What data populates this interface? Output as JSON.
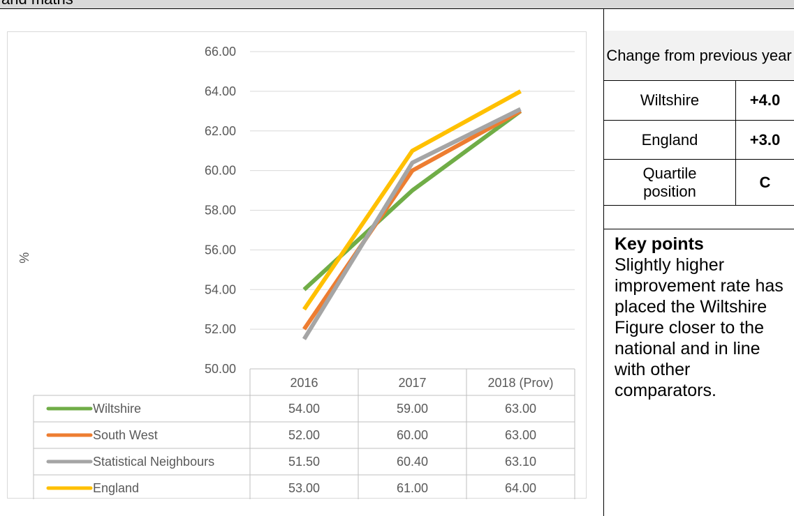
{
  "header": {
    "text": "and maths"
  },
  "chart_data": {
    "type": "line",
    "categories": [
      "2016",
      "2017",
      "2018 (Prov)"
    ],
    "ylabel": "%",
    "ylim": [
      50,
      66
    ],
    "yticks": [
      "50.00",
      "52.00",
      "54.00",
      "56.00",
      "58.00",
      "60.00",
      "62.00",
      "64.00",
      "66.00"
    ],
    "grid": true,
    "series": [
      {
        "name": "Wiltshire",
        "values": [
          54.0,
          59.0,
          63.0
        ],
        "display": [
          "54.00",
          "59.00",
          "63.00"
        ],
        "color": "#70ad47"
      },
      {
        "name": "South West",
        "values": [
          52.0,
          60.0,
          63.0
        ],
        "display": [
          "52.00",
          "60.00",
          "63.00"
        ],
        "color": "#ed7d31"
      },
      {
        "name": "Statistical Neighbours",
        "values": [
          51.5,
          60.4,
          63.1
        ],
        "display": [
          "51.50",
          "60.40",
          "63.10"
        ],
        "color": "#a5a5a5"
      },
      {
        "name": "England",
        "values": [
          53.0,
          61.0,
          64.0
        ],
        "display": [
          "53.00",
          "61.00",
          "64.00"
        ],
        "color": "#ffc000"
      }
    ]
  },
  "info_panel": {
    "title": "Change from previous year",
    "rows": [
      {
        "label": "Wiltshire",
        "value": "+4.0"
      },
      {
        "label": "England",
        "value": "+3.0"
      },
      {
        "label": "Quartile position",
        "value": "C"
      }
    ]
  },
  "key_points": {
    "title": "Key points",
    "text": "Slightly higher improvement rate has placed the Wiltshire Figure closer to the national and in line with other comparators."
  }
}
